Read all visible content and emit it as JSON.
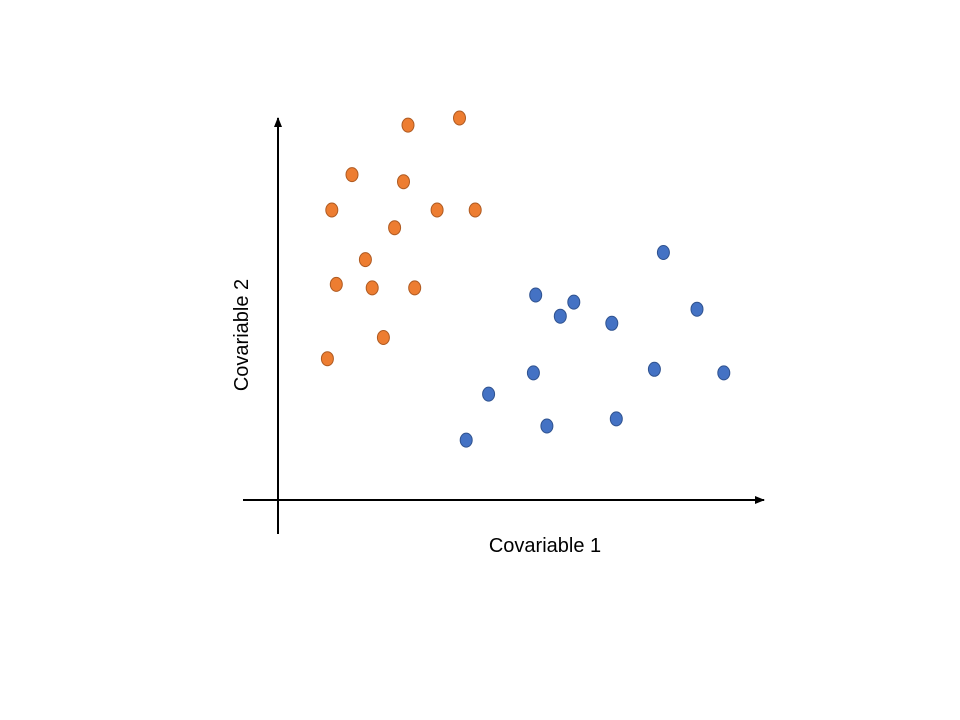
{
  "chart_data": {
    "type": "scatter",
    "title": "",
    "xlabel": "Covariable 1",
    "ylabel": "Covariable 2",
    "xlim": [
      0,
      100
    ],
    "ylim": [
      0,
      100
    ],
    "grid": false,
    "axes_style": "arrows",
    "legend": "none",
    "series": [
      {
        "color": "#ED7D31",
        "x": [
          25,
          36.5,
          12.5,
          24,
          8,
          31.5,
          40,
          22,
          15.5,
          9,
          17,
          26.5,
          19.5,
          7
        ],
        "y": [
          98,
          100,
          84,
          82,
          74,
          74,
          74,
          69,
          60,
          53,
          52,
          52,
          38,
          32
        ]
      },
      {
        "color": "#4472C4",
        "x": [
          82,
          53.5,
          89.5,
          62,
          59,
          70.5,
          80,
          95.5,
          53,
          43,
          56,
          71.5,
          38
        ],
        "y": [
          62,
          50,
          46,
          48,
          44,
          42,
          29,
          28,
          28,
          22,
          13,
          15,
          9
        ]
      }
    ]
  }
}
